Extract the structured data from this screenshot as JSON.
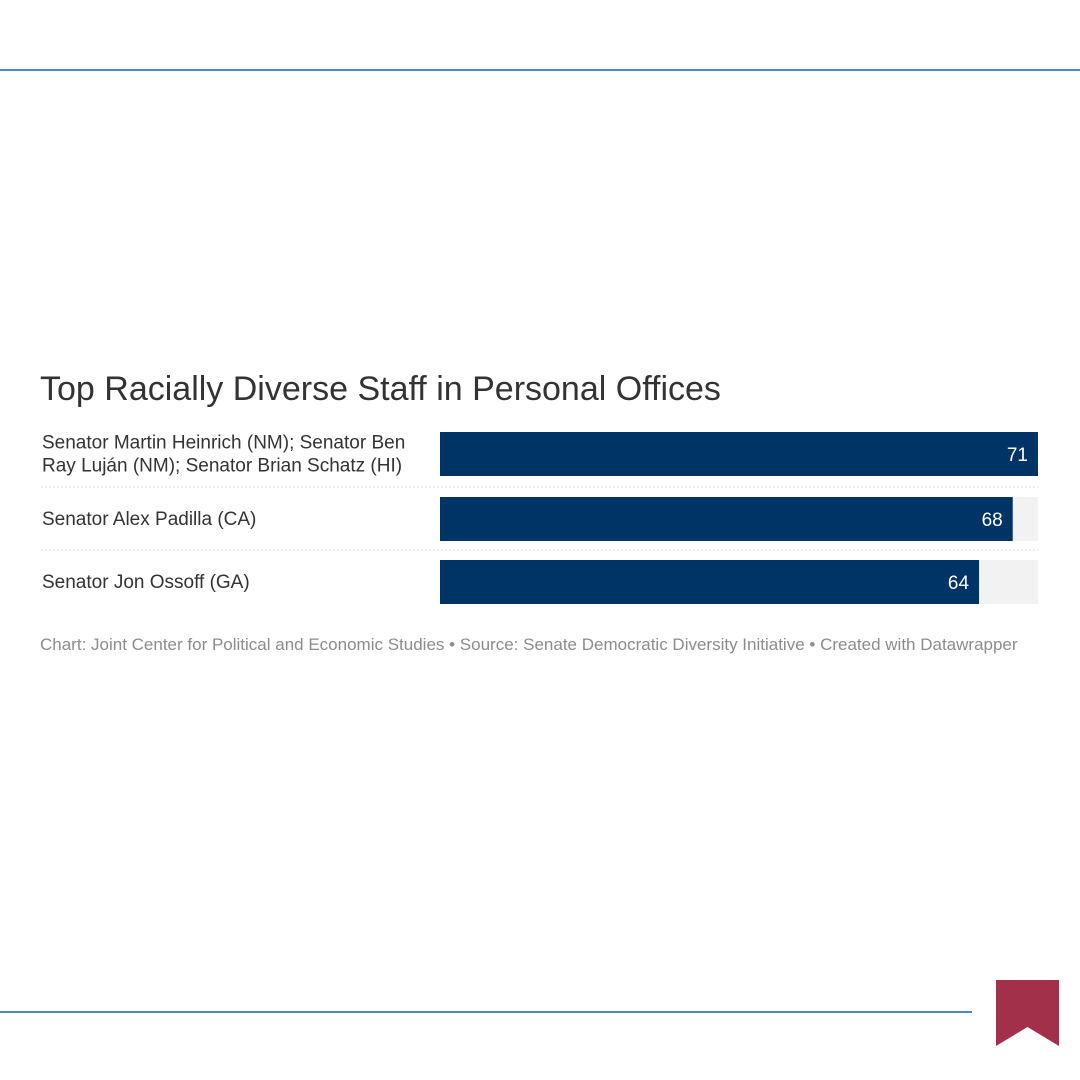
{
  "colors": {
    "bar": "#003366",
    "track": "#f2f2f2",
    "rule": "#4d8cc2",
    "bookmark": "#a3304b",
    "separator": "#d0d0d0"
  },
  "chart_data": {
    "type": "bar",
    "orientation": "horizontal",
    "title": "Top Racially Diverse Staff in Personal Offices",
    "categories": [
      [
        "Senator Martin Heinrich (NM); Senator Ben",
        "Ray Luján (NM); Senator Brian Schatz (HI)"
      ],
      [
        "Senator Alex Padilla (CA)"
      ],
      [
        "Senator Jon Ossoff (GA)"
      ]
    ],
    "values": [
      71,
      68,
      64
    ],
    "xlim": [
      0,
      71
    ],
    "grid": false,
    "legend": "none",
    "footer": "Chart: Joint Center for Political and Economic Studies • Source: Senate Democratic Diversity Initiative • Created with Datawrapper"
  }
}
